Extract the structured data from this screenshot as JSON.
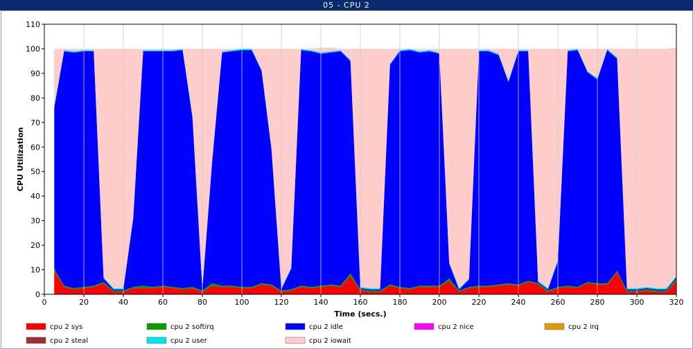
{
  "window": {
    "title": "05 - CPU 2"
  },
  "chart_data": {
    "type": "area",
    "stacked": true,
    "xlabel": "Time (secs.)",
    "ylabel": "CPU Utilization",
    "xlim": [
      0,
      320
    ],
    "ylim": [
      0,
      110
    ],
    "xticks": [
      0,
      20,
      40,
      60,
      80,
      100,
      120,
      140,
      160,
      180,
      200,
      220,
      240,
      260,
      280,
      300,
      320
    ],
    "yticks": [
      0,
      10,
      20,
      30,
      40,
      50,
      60,
      70,
      80,
      90,
      100,
      110
    ],
    "grid": true,
    "legend_position": "bottom",
    "x": [
      5,
      10,
      15,
      20,
      25,
      30,
      35,
      40,
      45,
      50,
      55,
      60,
      65,
      70,
      75,
      80,
      85,
      90,
      95,
      100,
      105,
      110,
      115,
      120,
      125,
      130,
      135,
      140,
      145,
      150,
      155,
      160,
      165,
      170,
      175,
      180,
      185,
      190,
      195,
      200,
      205,
      210,
      215,
      220,
      225,
      230,
      235,
      240,
      245,
      250,
      255,
      260,
      265,
      270,
      275,
      280,
      285,
      290,
      295,
      300,
      305,
      310,
      315,
      320
    ],
    "series": [
      {
        "name": "cpu 2 sys",
        "color": "#ff0000",
        "values": [
          9.5,
          3,
          2,
          2.5,
          3,
          4.5,
          1,
          1,
          2.5,
          2.5,
          2.5,
          3,
          2.5,
          2,
          2.5,
          1,
          3.5,
          3,
          3,
          2.5,
          2.5,
          4,
          3.5,
          1,
          1.5,
          3,
          2.5,
          3,
          3.5,
          3,
          7.5,
          1.5,
          1,
          1,
          3.5,
          2.5,
          2,
          3,
          3,
          3,
          5.5,
          1,
          2.5,
          3,
          3,
          3.5,
          4,
          3.5,
          5,
          4,
          1,
          2.5,
          3,
          2.5,
          4.5,
          4,
          4,
          9,
          1,
          1,
          1.5,
          1,
          1,
          5.5
        ]
      },
      {
        "name": "cpu 2 softirq",
        "color": "#00a000",
        "values": [
          1,
          0.5,
          0.5,
          0.5,
          0.5,
          0.5,
          0.5,
          0.5,
          0.5,
          1,
          0.5,
          0.5,
          0.5,
          0.5,
          0.5,
          0.5,
          1,
          0.5,
          0.5,
          0.5,
          0.5,
          0.5,
          0.5,
          0.5,
          0.5,
          0.5,
          0.5,
          0.5,
          0.5,
          0.5,
          1,
          0.5,
          0.5,
          0.5,
          0.5,
          0.5,
          0.5,
          0.5,
          0.5,
          0.5,
          1,
          0.5,
          0.5,
          0.5,
          0.5,
          0.5,
          0.5,
          0.5,
          0.5,
          0.5,
          0.5,
          0.5,
          0.5,
          0.5,
          0.5,
          0.5,
          0.5,
          0.5,
          0.5,
          0.5,
          0.5,
          0.5,
          0.5,
          1
        ]
      },
      {
        "name": "cpu 2 idle",
        "color": "#0000ff",
        "values": [
          65.5,
          95.5,
          96,
          96,
          95.5,
          1.5,
          0.5,
          0.5,
          28,
          95.5,
          96,
          95.5,
          96,
          97,
          69,
          0.5,
          50,
          95,
          95.5,
          96.5,
          96.5,
          86.5,
          55,
          0.5,
          8.5,
          96,
          96,
          94.5,
          94.5,
          95.5,
          86.5,
          0.5,
          0.5,
          0.5,
          89.5,
          96,
          97,
          95,
          95.5,
          94.5,
          6,
          0.5,
          3,
          95.5,
          95.5,
          93.5,
          82,
          95,
          93.5,
          0.5,
          0.5,
          10.5,
          95.5,
          96.5,
          85.5,
          83,
          95,
          86.5,
          0.5,
          0.5,
          0.5,
          0.5,
          0.5,
          0.5
        ]
      },
      {
        "name": "cpu 2 nice",
        "color": "#ff00ff",
        "values": [
          0,
          0,
          0,
          0,
          0,
          0,
          0,
          0,
          0,
          0,
          0,
          0,
          0,
          0,
          0,
          0,
          0,
          0,
          0,
          0,
          0,
          0,
          0,
          0,
          0,
          0,
          0,
          0,
          0,
          0,
          0,
          0,
          0,
          0,
          0,
          0,
          0,
          0,
          0,
          0,
          0,
          0,
          0,
          0,
          0,
          0,
          0,
          0,
          0,
          0,
          0,
          0,
          0,
          0,
          0,
          0,
          0,
          0,
          0,
          0,
          0,
          0,
          0,
          0
        ]
      },
      {
        "name": "cpu 2 irq",
        "color": "#e09a00",
        "values": [
          0,
          0,
          0,
          0,
          0,
          0,
          0,
          0,
          0,
          0,
          0,
          0,
          0,
          0,
          0,
          0,
          0,
          0,
          0,
          0,
          0,
          0,
          0,
          0,
          0,
          0,
          0,
          0,
          0,
          0,
          0,
          0,
          0,
          0,
          0,
          0,
          0,
          0,
          0,
          0,
          0,
          0,
          0,
          0,
          0,
          0,
          0,
          0,
          0,
          0,
          0,
          0,
          0,
          0,
          0,
          0,
          0,
          0,
          0,
          0,
          0,
          0,
          0,
          0
        ]
      },
      {
        "name": "cpu 2 steal",
        "color": "#a03030",
        "values": [
          0,
          0,
          0,
          0,
          0,
          0,
          0,
          0,
          0,
          0,
          0,
          0,
          0,
          0,
          0,
          0,
          0,
          0,
          0,
          0,
          0,
          0,
          0,
          0,
          0,
          0,
          0,
          0,
          0,
          0,
          0,
          0,
          0,
          0,
          0,
          0,
          0,
          0,
          0,
          0,
          0,
          0,
          0,
          0,
          0,
          0,
          0,
          0,
          0,
          0,
          0,
          0,
          0,
          0,
          0,
          0,
          0,
          0,
          0,
          0,
          0,
          0,
          0,
          0
        ]
      },
      {
        "name": "cpu 2 user",
        "color": "#00e6f0",
        "values": [
          0.5,
          0.5,
          0.5,
          0.5,
          0.5,
          0.5,
          0.5,
          0.5,
          0.5,
          0.5,
          0.5,
          0.5,
          0.5,
          0.5,
          0.5,
          0.5,
          0.5,
          0.5,
          0.5,
          0.5,
          0.5,
          0.5,
          0.5,
          0.5,
          0.5,
          0.5,
          0.5,
          0.5,
          0.5,
          0.5,
          0.5,
          0.5,
          0.5,
          0.5,
          0.5,
          0.5,
          0.5,
          0.5,
          0.5,
          0.5,
          0.5,
          0.5,
          0.5,
          0.5,
          0.5,
          0.5,
          0.5,
          0.5,
          0.5,
          0.5,
          0.5,
          0.5,
          0.5,
          0.5,
          0.5,
          0.5,
          0.5,
          0.5,
          0.5,
          0.5,
          0.5,
          0.5,
          0.5,
          0.5
        ]
      },
      {
        "name": "cpu 2 iowait",
        "color": "#ffcccc",
        "values": [
          23.5,
          0.5,
          1,
          0.5,
          0.5,
          93,
          97.5,
          97.5,
          68.5,
          0.5,
          0.5,
          0.5,
          0.5,
          0,
          27.5,
          97.5,
          45,
          1,
          0.5,
          0,
          0,
          8.5,
          40.5,
          97.5,
          89,
          0,
          0.5,
          2,
          1.5,
          0.5,
          4.5,
          97,
          97.5,
          97.5,
          6,
          0.5,
          0,
          1,
          0.5,
          1.5,
          87,
          97.5,
          93.5,
          0.5,
          0.5,
          2,
          13,
          0.5,
          0.5,
          94.5,
          97.5,
          86,
          0.5,
          0,
          9,
          12,
          0,
          3.5,
          97.5,
          97.5,
          97,
          97.5,
          97.5,
          93
        ]
      }
    ]
  }
}
